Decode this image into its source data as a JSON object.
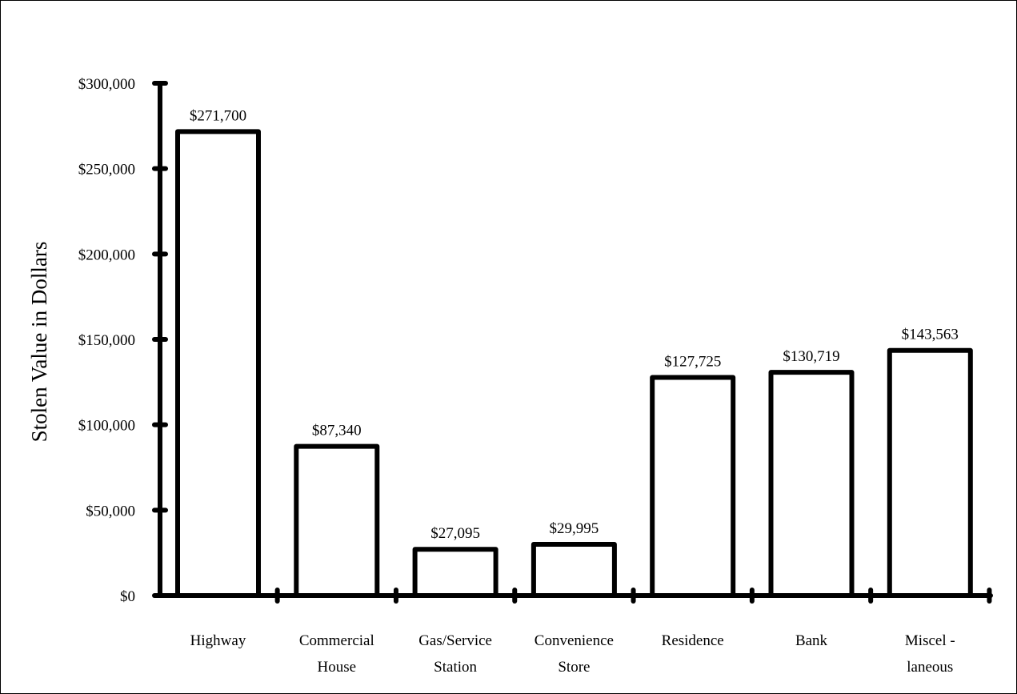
{
  "chart_data": {
    "type": "bar",
    "title": "",
    "xlabel": "",
    "ylabel": "Stolen Value in Dollars",
    "categories": [
      [
        "Highway"
      ],
      [
        "Commercial",
        "House"
      ],
      [
        "Gas/Service",
        "Station"
      ],
      [
        "Convenience",
        "Store"
      ],
      [
        "Residence"
      ],
      [
        "Bank"
      ],
      [
        "Miscel -",
        "laneous"
      ]
    ],
    "values": [
      271700,
      87340,
      27095,
      29995,
      127725,
      130719,
      143563
    ],
    "value_labels": [
      "$271,700",
      "$87,340",
      "$27,095",
      "$29,995",
      "$127,725",
      "$130,719",
      "$143,563"
    ],
    "yticks": [
      0,
      50000,
      100000,
      150000,
      200000,
      250000,
      300000
    ],
    "ytick_labels": [
      "$0",
      "$50,000",
      "$100,000",
      "$150,000",
      "$200,000",
      "$250,000",
      "$300,000"
    ],
    "ylim": [
      0,
      300000
    ],
    "grid": false,
    "legend": "none",
    "bar_fill": "#ffffff",
    "bar_stroke": "#000000"
  }
}
